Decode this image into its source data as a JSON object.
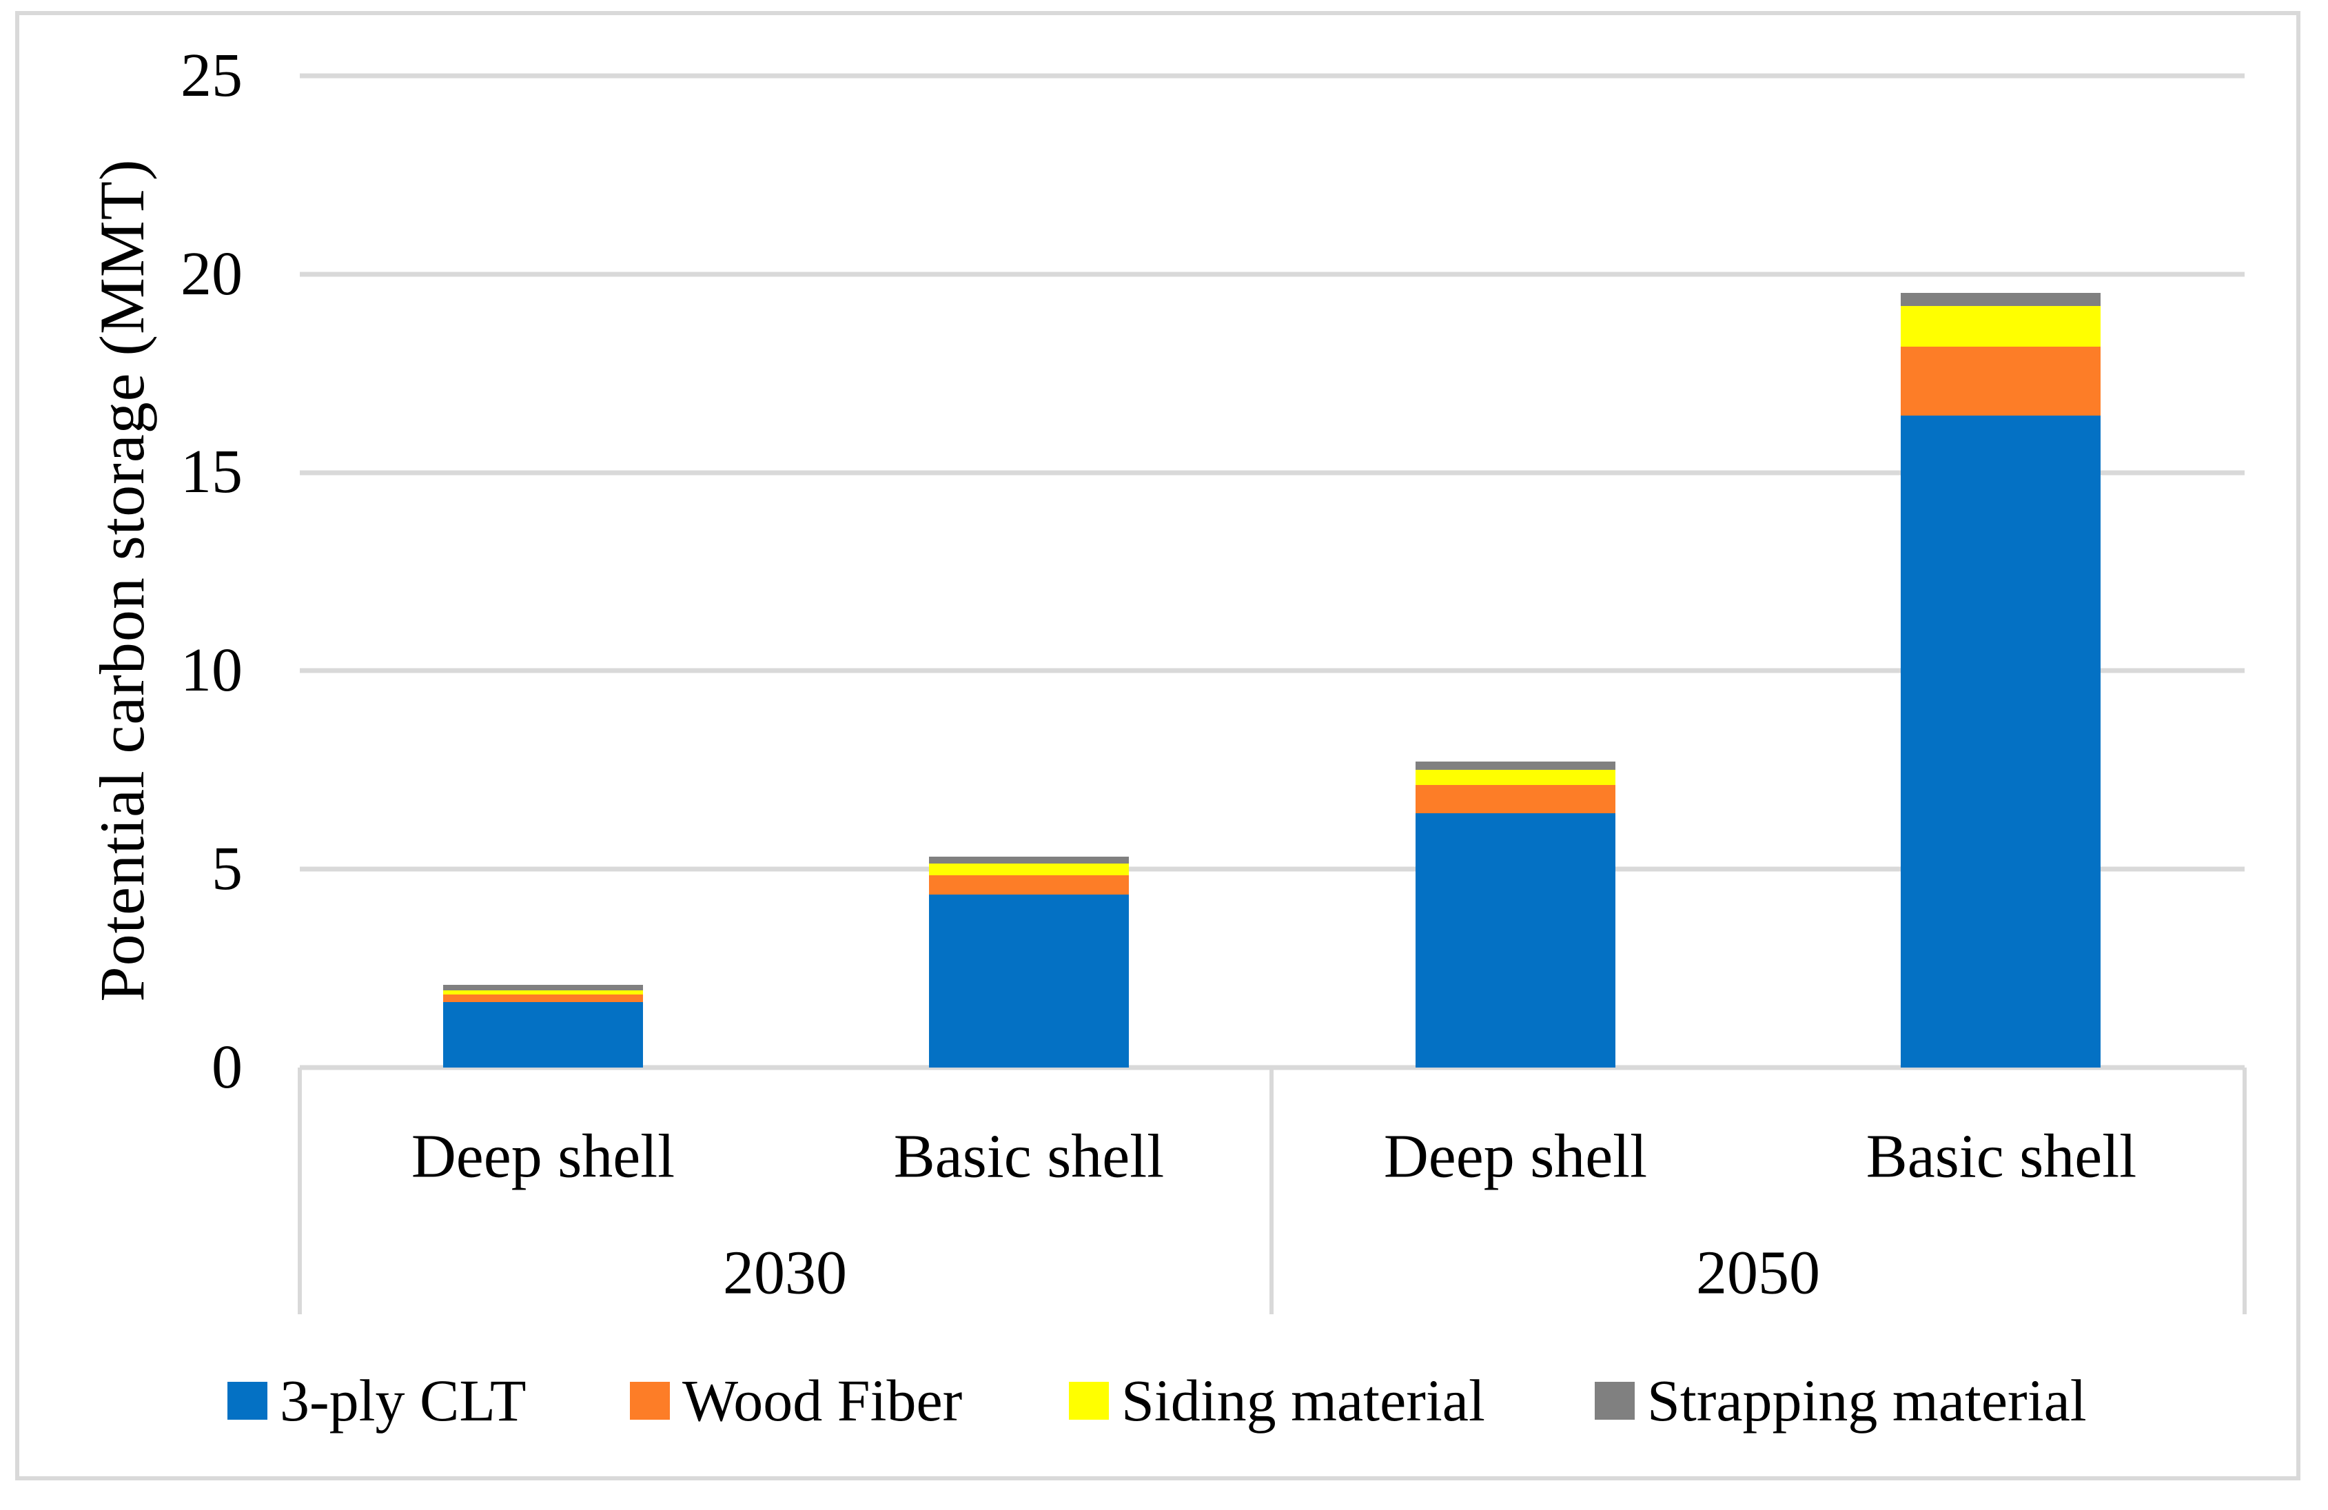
{
  "figure": {
    "background": "#FFFFFF",
    "border_color": "#D9D9D9",
    "gridline_color": "#D9D9D9",
    "text_color": "#000000"
  },
  "chart_data": {
    "type": "bar",
    "stacked": true,
    "title": "",
    "xlabel": "",
    "ylabel": "Potential carbon storage (MMT)",
    "ylim": [
      0,
      25
    ],
    "ytick_interval": 5,
    "ytick_labels": [
      "25",
      "20",
      "15",
      "10",
      "5",
      "0"
    ],
    "grid": "horizontal",
    "legend_position": "bottom",
    "category_groups": [
      {
        "label": "2030",
        "categories": [
          "Deep shell",
          "Basic shell"
        ]
      },
      {
        "label": "2050",
        "categories": [
          "Deep shell",
          "Basic shell"
        ]
      }
    ],
    "categories": [
      "Deep shell",
      "Basic shell",
      "Deep shell",
      "Basic shell"
    ],
    "series": [
      {
        "name": "3-ply CLT",
        "color": "#0471C4",
        "values": [
          1.65,
          4.36,
          6.41,
          16.43
        ]
      },
      {
        "name": "Wood Fiber",
        "color": "#FD7D27",
        "values": [
          0.19,
          0.49,
          0.71,
          1.75
        ]
      },
      {
        "name": "Siding material",
        "color": "#FFFF00",
        "values": [
          0.1,
          0.3,
          0.38,
          1.01
        ]
      },
      {
        "name": "Strapping material",
        "color": "#808080",
        "values": [
          0.14,
          0.16,
          0.21,
          0.33
        ]
      }
    ],
    "bar_totals": [
      2.08,
      5.31,
      7.71,
      19.52
    ]
  }
}
